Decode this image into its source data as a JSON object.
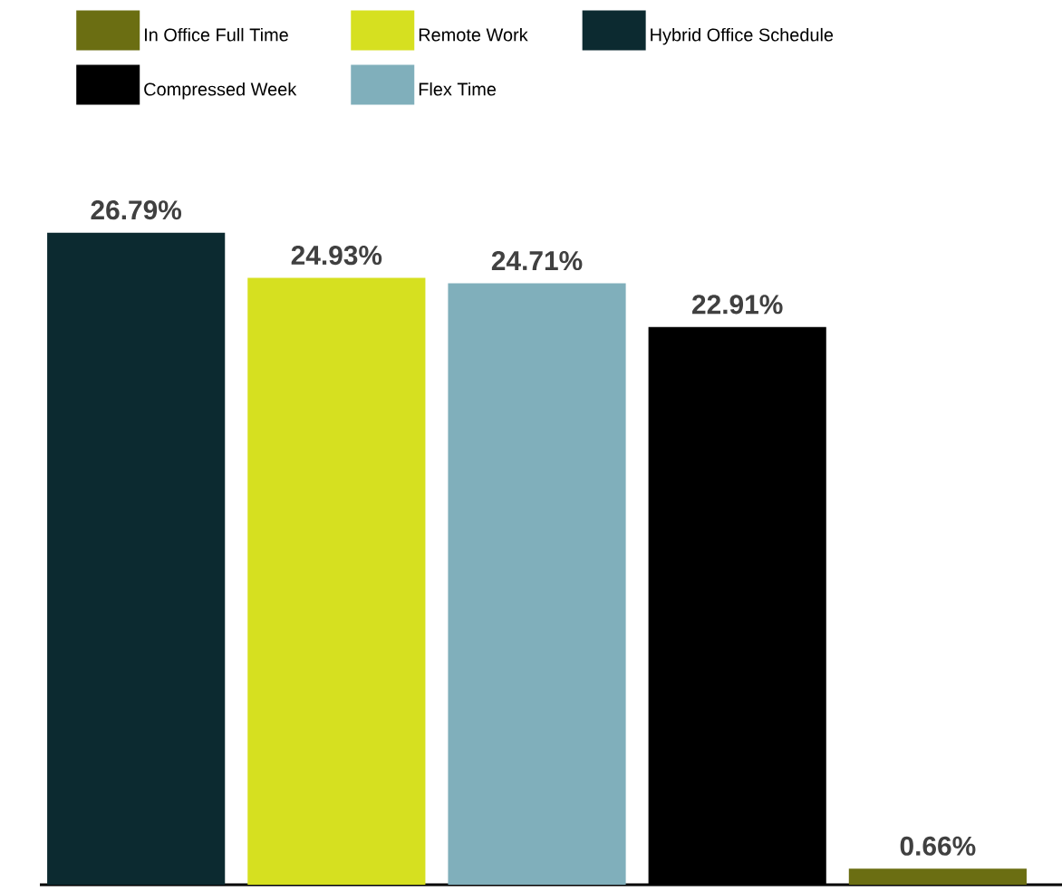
{
  "chart_data": {
    "type": "bar",
    "categories": [
      null,
      null,
      null,
      null,
      null
    ],
    "legend": "top",
    "stacked": true,
    "series": [
      {
        "name": "In Office Full Time",
        "color": "#6b6e12",
        "values": [
          null,
          null,
          null,
          null,
          0.66
        ],
        "value_labels": [
          null,
          null,
          null,
          null,
          "0.66%"
        ]
      },
      {
        "name": "Remote Work",
        "color": "#d6e020",
        "values": [
          null,
          24.93,
          null,
          null,
          null
        ],
        "value_labels": [
          null,
          "24.93%",
          null,
          null,
          null
        ]
      },
      {
        "name": "Hybrid Office Schedule",
        "color": "#0c2a30",
        "values": [
          26.79,
          null,
          null,
          null,
          null
        ],
        "value_labels": [
          "26.79%",
          null,
          null,
          null,
          null
        ]
      },
      {
        "name": "Compressed Week",
        "color": "#000000",
        "values": [
          null,
          null,
          null,
          22.91,
          null
        ],
        "value_labels": [
          null,
          null,
          null,
          "22.91%",
          null
        ]
      },
      {
        "name": "Flex Time",
        "color": "#80afbb",
        "values": [
          null,
          null,
          24.71,
          null,
          null
        ],
        "value_labels": [
          null,
          null,
          "24.71%",
          null,
          null
        ]
      }
    ]
  }
}
